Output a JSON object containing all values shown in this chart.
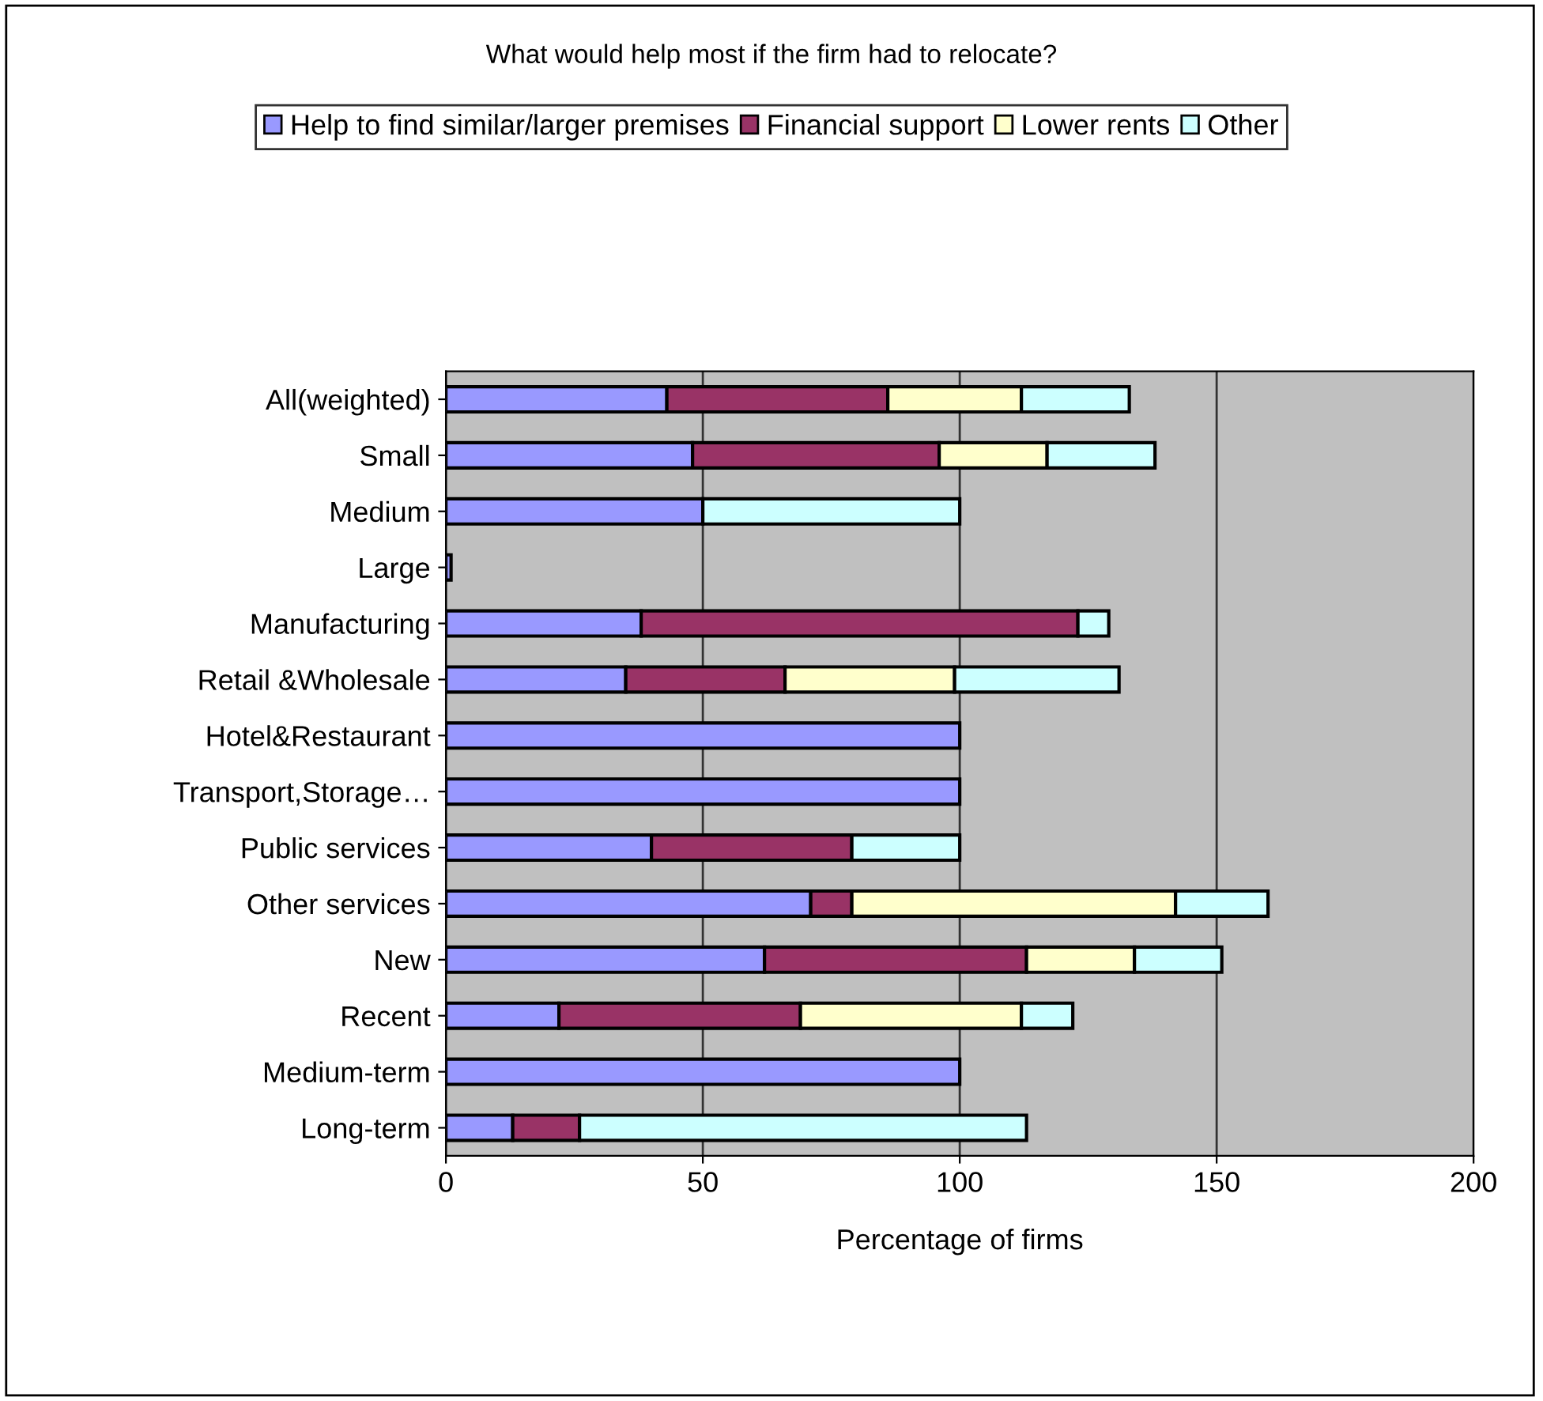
{
  "chart_data": {
    "type": "bar",
    "orientation": "horizontal",
    "stacked": true,
    "title": "What would help most if the firm had to relocate?",
    "xlabel": "Percentage of firms",
    "categories": [
      "All(weighted)",
      "Small",
      "Medium",
      "Large",
      "Manufacturing",
      "Retail &Wholesale",
      "Hotel&Restaurant",
      "Transport,Storage…",
      "Public services",
      "Other services",
      "New",
      "Recent",
      "Medium-term",
      "Long-term"
    ],
    "series": [
      {
        "name": "Help to find similar/larger premises",
        "color": "#9999ff",
        "values": [
          43,
          48,
          50,
          1,
          38,
          35,
          100,
          100,
          40,
          71,
          62,
          22,
          100,
          13
        ]
      },
      {
        "name": "Financial support",
        "color": "#993366",
        "values": [
          43,
          48,
          0,
          0,
          85,
          31,
          0,
          0,
          39,
          8,
          51,
          47,
          0,
          13
        ]
      },
      {
        "name": "Lower rents",
        "color": "#ffffcc",
        "values": [
          26,
          21,
          0,
          0,
          0,
          33,
          0,
          0,
          0,
          63,
          21,
          43,
          0,
          0
        ]
      },
      {
        "name": "Other",
        "color": "#ccffff",
        "values": [
          21,
          21,
          50,
          0,
          6,
          32,
          0,
          0,
          21,
          18,
          17,
          10,
          0,
          87
        ]
      }
    ],
    "xlim": [
      0,
      200
    ],
    "xticks": [
      0,
      50,
      100,
      150,
      200
    ],
    "grid": "x",
    "legend": "top"
  }
}
